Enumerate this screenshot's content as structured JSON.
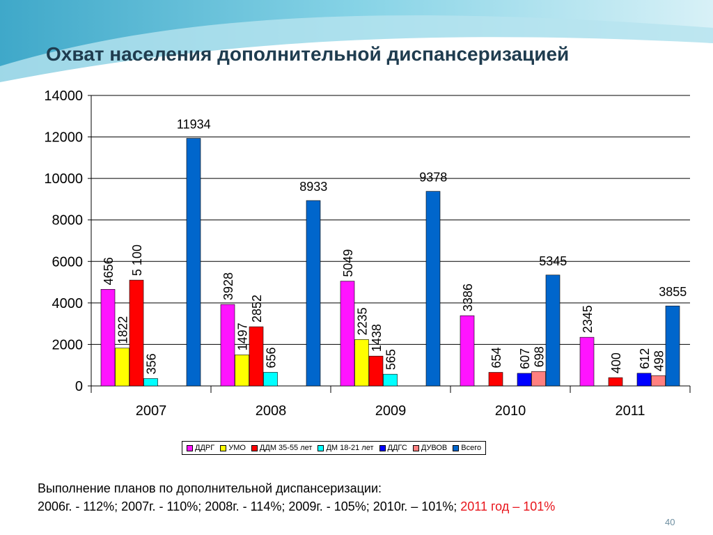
{
  "slide": {
    "title": "Охват населения дополнительной диспансеризацией",
    "footer_line1": "Выполнение планов по дополнительной диспансеризации:",
    "footer_line2_black": "2006г. - 112%; 2007г. - 110%; 2008г. - 114%; 2009г. - 105%; 2010г. – 101%; ",
    "footer_line2_red": "2011 год – 101%",
    "page_number": "40"
  },
  "chart_data": {
    "type": "bar",
    "categories": [
      "2007",
      "2008",
      "2009",
      "2010",
      "2011"
    ],
    "ylim": [
      0,
      14000
    ],
    "yticks": [
      0,
      2000,
      4000,
      6000,
      8000,
      10000,
      12000,
      14000
    ],
    "grid": true,
    "legend_position": "bottom",
    "series": [
      {
        "name": "ДДРГ",
        "color": "#ff14ff",
        "values": [
          4656,
          3928,
          5049,
          3386,
          2345
        ]
      },
      {
        "name": "УМО",
        "color": "#ffff00",
        "values": [
          1822,
          1497,
          2235,
          null,
          null
        ]
      },
      {
        "name": "ДДМ 35-55 лет",
        "color": "#ff0000",
        "values": [
          5100,
          2852,
          1438,
          654,
          400
        ]
      },
      {
        "name": "ДМ 18-21 лет",
        "color": "#00ffff",
        "values": [
          356,
          656,
          565,
          null,
          null
        ]
      },
      {
        "name": "ДДГС",
        "color": "#0000ff",
        "values": [
          null,
          null,
          null,
          607,
          612
        ]
      },
      {
        "name": "ДУВОВ",
        "color": "#ff8080",
        "values": [
          null,
          null,
          null,
          698,
          498
        ]
      },
      {
        "name": "Всего",
        "color": "#0066cc",
        "values": [
          11934,
          8933,
          9378,
          5345,
          3855
        ]
      }
    ],
    "data_labels": [
      [
        "4656",
        "1822",
        "5 100",
        "356",
        null,
        null,
        "11934"
      ],
      [
        "3928",
        "1497",
        "2852",
        "656",
        null,
        null,
        "8933"
      ],
      [
        "5049",
        "2235",
        "1438",
        "565",
        null,
        null,
        "9378"
      ],
      [
        "3386",
        null,
        "654",
        null,
        "607",
        "698",
        "5345"
      ],
      [
        "2345",
        null,
        "400",
        null,
        "612",
        "498",
        "3855"
      ]
    ]
  }
}
